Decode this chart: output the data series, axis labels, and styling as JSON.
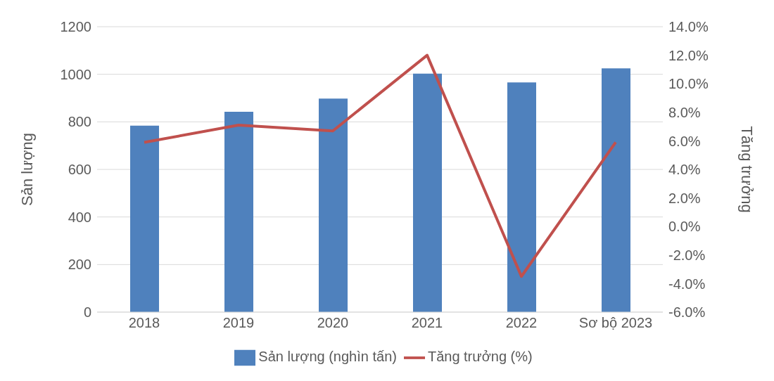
{
  "chart_data": {
    "type": "bar",
    "ylabel": "Sản lượng",
    "y2label": "Tăng trưởng",
    "categories": [
      "2018",
      "2019",
      "2020",
      "2021",
      "2022",
      "Sơ bộ 2023"
    ],
    "series": [
      {
        "name": "Sản lượng (nghìn tấn)",
        "color": "#4f81bd",
        "values": [
          784,
          842,
          898,
          1003,
          966,
          1025
        ]
      },
      {
        "name": "Tăng trưởng (%)",
        "type": "line",
        "axis": "y2",
        "color": "#c0504d",
        "values": [
          5.9,
          7.1,
          6.7,
          12.0,
          -3.5,
          5.9
        ]
      }
    ],
    "ylim": [
      0,
      1200
    ],
    "yticks": [
      0,
      200,
      400,
      600,
      800,
      1000,
      1200
    ],
    "y2lim": [
      -6,
      14
    ],
    "y2ticks": [
      {
        "value": -6,
        "label": "-6.0%"
      },
      {
        "value": -4,
        "label": "-4.0%"
      },
      {
        "value": -2,
        "label": "-2.0%"
      },
      {
        "value": 0,
        "label": "0.0%"
      },
      {
        "value": 2,
        "label": "2.0%"
      },
      {
        "value": 4,
        "label": "4.0%"
      },
      {
        "value": 6,
        "label": "6.0%"
      },
      {
        "value": 8,
        "label": "8.0%"
      },
      {
        "value": 10,
        "label": "10.0%"
      },
      {
        "value": 12,
        "label": "12.0%"
      },
      {
        "value": 14,
        "label": "14.0%"
      }
    ],
    "grid": "y",
    "legend": "bottom",
    "marker": "none",
    "line_style": "solid"
  }
}
